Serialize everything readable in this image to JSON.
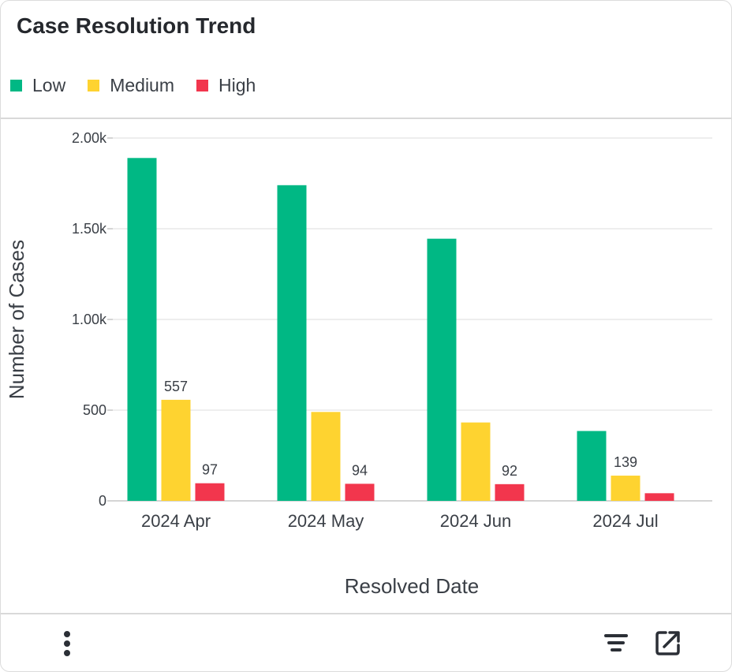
{
  "header": {
    "title": "Case Resolution Trend"
  },
  "footer": {
    "menu_icon": "vertical-dots-icon",
    "filter_icon": "filter-lines-icon",
    "open_icon": "open-external-icon"
  },
  "colors": {
    "low": "#00b884",
    "medium": "#fed330",
    "high": "#f2364d",
    "axis": "#c7c7c7",
    "grid": "#e8e8e8",
    "text": "#3a3f46"
  },
  "chart_data": {
    "type": "bar",
    "title": "Case Resolution Trend",
    "xlabel": "Resolved Date",
    "ylabel": "Number of Cases",
    "categories": [
      "2024 Apr",
      "2024 May",
      "2024 Jun",
      "2024 Jul"
    ],
    "ylim": [
      0,
      2000
    ],
    "yticks": [
      0,
      500,
      1000,
      1500,
      2000
    ],
    "ytick_labels": [
      "0",
      "500",
      "1.00k",
      "1.50k",
      "2.00k"
    ],
    "grid": true,
    "legend_position": "top-left",
    "series": [
      {
        "name": "Low",
        "color": "#00b884",
        "values": [
          1890,
          1740,
          1445,
          385
        ],
        "labels": [
          null,
          null,
          null,
          null
        ]
      },
      {
        "name": "Medium",
        "color": "#fed330",
        "values": [
          557,
          490,
          432,
          139
        ],
        "labels": [
          "557",
          null,
          null,
          "139"
        ]
      },
      {
        "name": "High",
        "color": "#f2364d",
        "values": [
          97,
          94,
          92,
          42
        ],
        "labels": [
          "97",
          "94",
          "92",
          null
        ]
      }
    ]
  }
}
